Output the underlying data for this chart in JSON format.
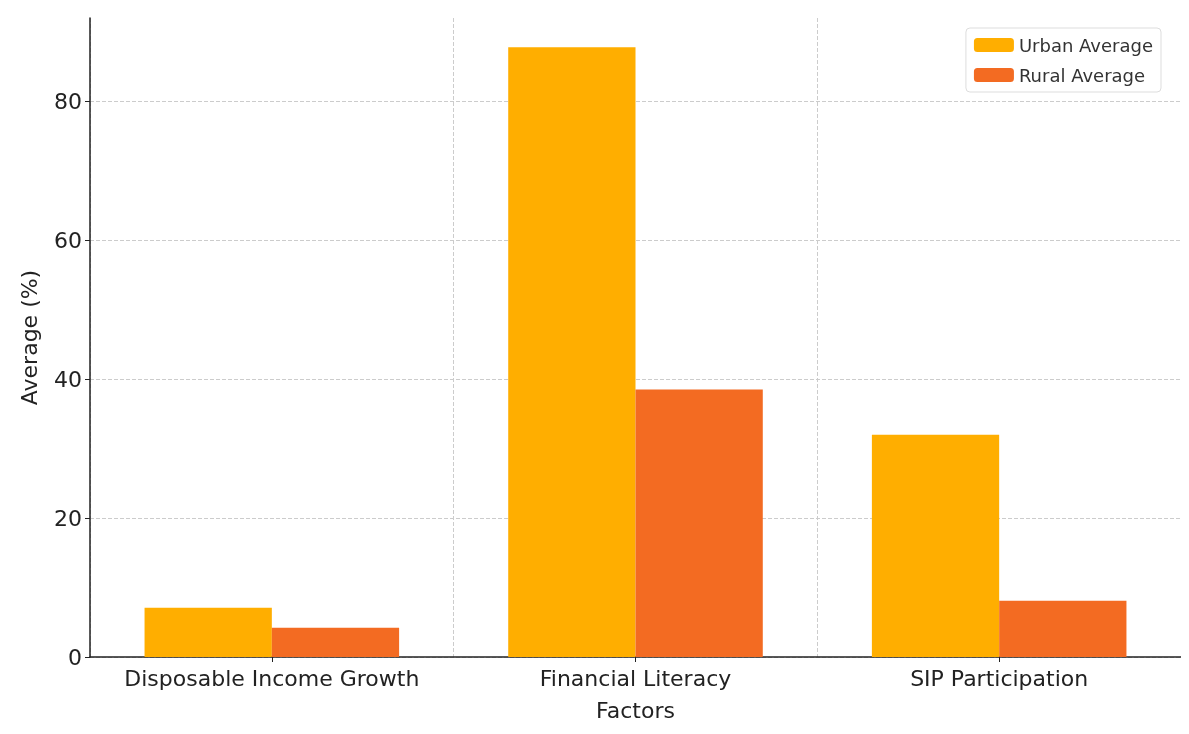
{
  "chart_data": {
    "type": "bar",
    "xlabel": "Factors",
    "ylabel": "Average (%)",
    "categories": [
      "Disposable Income Growth",
      "Financial Literacy",
      "SIP Participation"
    ],
    "series": [
      {
        "name": "Urban Average",
        "color": "#ffae00",
        "values": [
          7.1,
          87.8,
          32.0
        ]
      },
      {
        "name": "Rural Average",
        "color": "#f36b22",
        "values": [
          4.2,
          38.5,
          8.1
        ]
      }
    ],
    "ylim": [
      0,
      92
    ],
    "yticks": [
      0,
      20,
      40,
      60,
      80
    ],
    "grid": true,
    "legend": "top right"
  }
}
